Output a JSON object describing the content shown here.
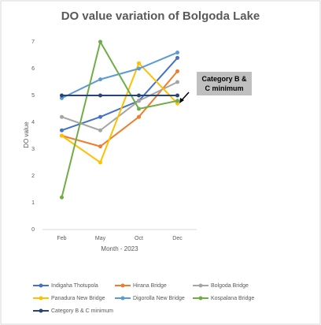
{
  "chart_data": {
    "type": "line",
    "title": "DO value variation of Bolgoda Lake",
    "y_label": "DO value",
    "x_label": "Month - 2023",
    "annotation": "Category B & C minimum",
    "categories": [
      "Feb",
      "May",
      "Oct",
      "Dec"
    ],
    "ylim": [
      0,
      7
    ],
    "yticks": [
      0,
      1,
      2,
      3,
      4,
      5,
      6,
      7
    ],
    "grid": false,
    "legend": "bottom",
    "series": [
      {
        "name": "Indigaha Thotupola",
        "color": "#4472c4",
        "values": [
          3.7,
          4.2,
          4.8,
          6.4
        ]
      },
      {
        "name": "Hirana Bridge",
        "color": "#ed7d31",
        "values": [
          3.5,
          3.1,
          4.2,
          5.9
        ]
      },
      {
        "name": "Bolgoda Bridge",
        "color": "#a5a5a5",
        "values": [
          4.2,
          3.7,
          4.8,
          5.5
        ]
      },
      {
        "name": "Panadura New Bridge",
        "color": "#ffc000",
        "values": [
          3.5,
          2.5,
          6.2,
          4.7
        ]
      },
      {
        "name": "Digorolla New Bridge",
        "color": "#5b9bd5",
        "values": [
          4.9,
          5.6,
          6.0,
          6.6
        ]
      },
      {
        "name": "Kospalana Bridge",
        "color": "#70ad47",
        "values": [
          1.2,
          7.0,
          4.5,
          4.8
        ]
      },
      {
        "name": "Category B & C minimum",
        "color": "#264478",
        "values": [
          5,
          5,
          5,
          5
        ]
      }
    ]
  }
}
